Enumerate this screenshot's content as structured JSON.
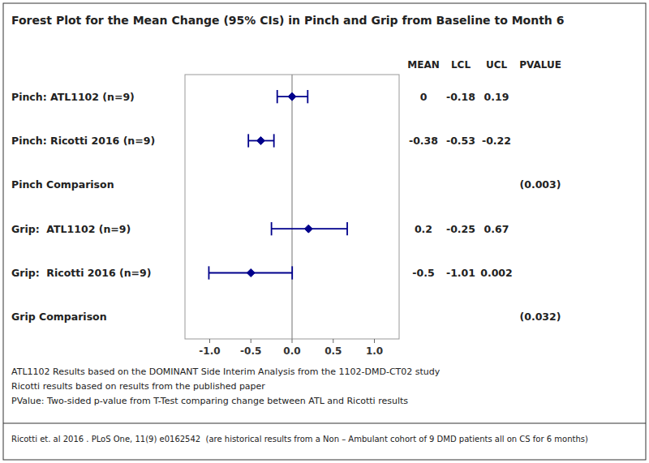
{
  "chart_data": {
    "type": "forest",
    "title": "Forest Plot for the Mean Change (95% CIs) in Pinch and Grip from Baseline to Month 6",
    "categories": [
      "Pinch: ATL1102 (n=9)",
      "Pinch: Ricotti 2016 (n=9)",
      "Pinch Comparison",
      "Grip:  ATL1102 (n=9)",
      "Grip:  Ricotti 2016 (n=9)",
      "Grip Comparison"
    ],
    "values": [
      0.0,
      -0.38,
      null,
      0.2,
      -0.5,
      null
    ],
    "lower": [
      -0.18,
      -0.53,
      null,
      -0.25,
      -1.01,
      null
    ],
    "upper": [
      0.19,
      -0.22,
      null,
      0.67,
      0.002,
      null
    ],
    "pvalues": [
      null,
      null,
      0.003,
      null,
      null,
      0.032
    ],
    "pvalue_labels": [
      null,
      null,
      "(0.003)",
      null,
      null,
      "(0.032)"
    ],
    "columns": [
      "MEAN",
      "LCL",
      "UCL",
      "PVALUE"
    ],
    "reference": 0.0,
    "xlim": [
      -1.3,
      1.3
    ],
    "xticks": [
      {
        "value": -1.0,
        "label": "-1.0"
      },
      -0.5,
      {
        "value": 0.0,
        "label": "0.0"
      },
      0.5,
      {
        "value": 1.0,
        "label": "1.0"
      }
    ],
    "grid": false,
    "data_labels": true,
    "color": "#00008B",
    "notes": [
      "ATL1102 Results based on the DOMINANT Side Interim Analysis from the 1102-DMD-CT02 study",
      "Ricotti results based on results from the published paper",
      "PValue: Two-sided p-value from T-Test comparing change between ATL and Ricotti results"
    ],
    "source": "Ricotti et. al 2016 . PLoS One, 11(9) e0162542  (are historical results from a Non – Ambulant cohort of 9 DMD patients all on CS for 6 months)"
  }
}
